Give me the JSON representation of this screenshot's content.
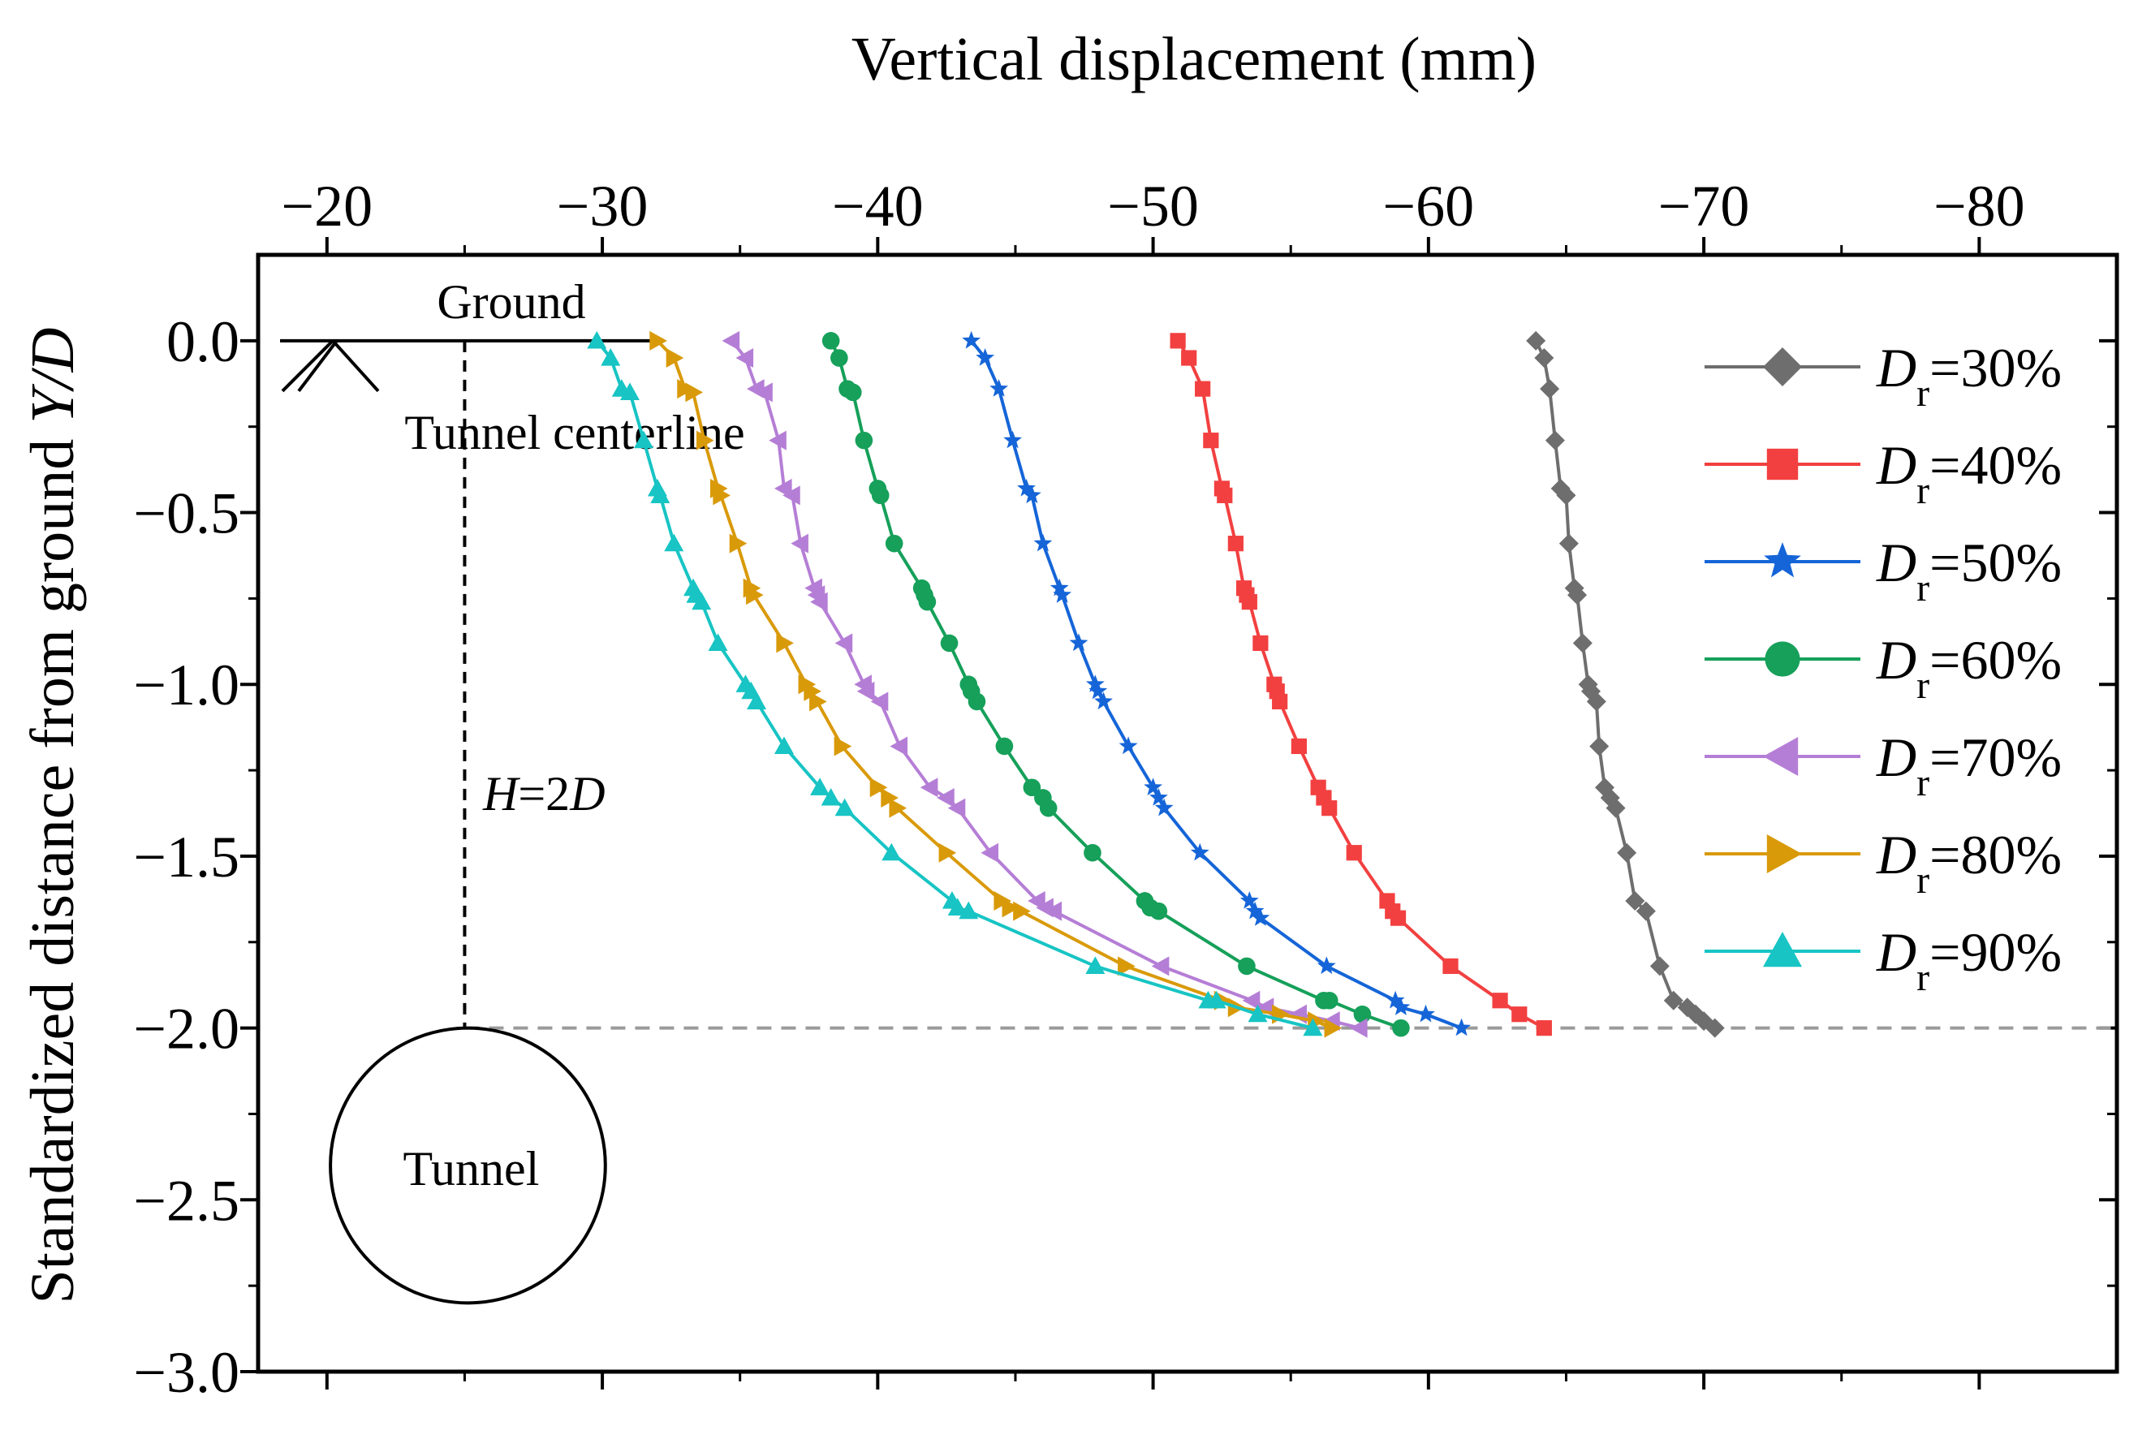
{
  "chart_data": {
    "type": "line",
    "title": "",
    "xlabel": "Vertical displacement (mm)",
    "ylabel_prefix": "Standardized distance from ground ",
    "ylabel_italic": "Y/D",
    "xlim": [
      -17.5,
      -85
    ],
    "ylim": [
      -3.0,
      0.25
    ],
    "x_ticks": [
      -20,
      -30,
      -40,
      -50,
      -60,
      -70,
      -80
    ],
    "x_tick_labels": [
      "−20",
      "−30",
      "−40",
      "−50",
      "−60",
      "−70",
      "−80"
    ],
    "y_ticks": [
      0.0,
      -0.5,
      -1.0,
      -1.5,
      -2.0,
      -2.5,
      -3.0
    ],
    "y_tick_labels": [
      "0.0",
      "−0.5",
      "−1.0",
      "−1.5",
      "−2.0",
      "−2.5",
      "−3.0"
    ],
    "grid": false,
    "legend_position": "right",
    "annotations": {
      "ground": "Ground",
      "tunnel_centerline": "Tunnel centerline",
      "depth_label_italic_1": "H",
      "depth_label_mid": "=2",
      "depth_label_italic_2": "D",
      "tunnel": "Tunnel",
      "ground_level_y": 0.0,
      "ground_line_x_end": -32,
      "centerline_x": -25,
      "tunnel_axis_y": -2.0,
      "tunnel_center_y": -2.4,
      "tunnel_radius_y": 0.4
    },
    "series": [
      {
        "name_sub": "r",
        "name_value": "=30%",
        "marker": "diamond",
        "color": "#6e6e6e",
        "x": [
          -63.9,
          -64.2,
          -64.4,
          -64.6,
          -64.8,
          -65.0,
          -65.1,
          -65.3,
          -65.4,
          -65.6,
          -65.8,
          -65.9,
          -66.1,
          -66.2,
          -66.4,
          -66.6,
          -66.8,
          -67.2,
          -67.5,
          -67.9,
          -68.4,
          -68.9,
          -69.4,
          -69.7,
          -70.0,
          -70.4
        ],
        "y": [
          0.0,
          -0.05,
          -0.14,
          -0.29,
          -0.43,
          -0.45,
          -0.59,
          -0.72,
          -0.74,
          -0.88,
          -1.0,
          -1.02,
          -1.05,
          -1.18,
          -1.3,
          -1.33,
          -1.36,
          -1.49,
          -1.63,
          -1.66,
          -1.82,
          -1.92,
          -1.94,
          -1.96,
          -1.98,
          -2.0
        ]
      },
      {
        "name_sub": "r",
        "name_value": "=40%",
        "marker": "square",
        "color": "#f24040",
        "x": [
          -50.9,
          -51.3,
          -51.8,
          -52.1,
          -52.5,
          -52.6,
          -53.0,
          -53.3,
          -53.4,
          -53.5,
          -53.9,
          -54.4,
          -54.5,
          -54.6,
          -55.3,
          -56.0,
          -56.2,
          -56.4,
          -57.3,
          -58.5,
          -58.7,
          -58.9,
          -60.8,
          -62.6,
          -63.3,
          -64.2
        ],
        "y": [
          0.0,
          -0.05,
          -0.14,
          -0.29,
          -0.43,
          -0.45,
          -0.59,
          -0.72,
          -0.74,
          -0.76,
          -0.88,
          -1.0,
          -1.02,
          -1.05,
          -1.18,
          -1.3,
          -1.33,
          -1.36,
          -1.49,
          -1.63,
          -1.66,
          -1.68,
          -1.82,
          -1.92,
          -1.96,
          -2.0
        ]
      },
      {
        "name_sub": "r",
        "name_value": "=50%",
        "marker": "star",
        "color": "#1565d8",
        "x": [
          -43.4,
          -43.9,
          -44.4,
          -44.9,
          -45.4,
          -45.6,
          -46.0,
          -46.6,
          -46.7,
          -47.3,
          -47.9,
          -48.0,
          -48.2,
          -49.1,
          -50.0,
          -50.2,
          -50.4,
          -51.7,
          -53.5,
          -53.7,
          -53.9,
          -56.3,
          -58.8,
          -59.0,
          -59.9,
          -61.2
        ],
        "y": [
          0.0,
          -0.05,
          -0.14,
          -0.29,
          -0.43,
          -0.45,
          -0.59,
          -0.72,
          -0.74,
          -0.88,
          -1.0,
          -1.02,
          -1.05,
          -1.18,
          -1.3,
          -1.33,
          -1.36,
          -1.49,
          -1.63,
          -1.66,
          -1.68,
          -1.82,
          -1.92,
          -1.94,
          -1.96,
          -2.0
        ]
      },
      {
        "name_sub": "r",
        "name_value": "=60%",
        "marker": "circle",
        "color": "#16a05a",
        "x": [
          -38.3,
          -38.6,
          -38.9,
          -39.1,
          -39.5,
          -40.0,
          -40.1,
          -40.6,
          -41.6,
          -41.7,
          -41.8,
          -42.6,
          -43.3,
          -43.4,
          -43.6,
          -44.6,
          -45.6,
          -46.0,
          -46.2,
          -47.8,
          -49.7,
          -49.9,
          -50.2,
          -53.4,
          -56.2,
          -56.4,
          -57.6,
          -59.0
        ],
        "y": [
          0.0,
          -0.05,
          -0.14,
          -0.15,
          -0.29,
          -0.43,
          -0.45,
          -0.59,
          -0.72,
          -0.74,
          -0.76,
          -0.88,
          -1.0,
          -1.02,
          -1.05,
          -1.18,
          -1.3,
          -1.33,
          -1.36,
          -1.49,
          -1.63,
          -1.65,
          -1.66,
          -1.82,
          -1.92,
          -1.92,
          -1.96,
          -2.0
        ]
      },
      {
        "name_sub": "r",
        "name_value": "=70%",
        "marker": "triangle-left",
        "color": "#b57ed6",
        "x": [
          -34.7,
          -35.2,
          -35.6,
          -35.9,
          -36.4,
          -36.6,
          -36.9,
          -37.2,
          -37.7,
          -37.8,
          -37.9,
          -38.8,
          -39.5,
          -39.6,
          -40.1,
          -40.8,
          -41.9,
          -42.5,
          -42.9,
          -44.1,
          -45.8,
          -46.1,
          -46.4,
          -50.3,
          -53.6,
          -54.1,
          -55.3,
          -56.5,
          -57.5
        ],
        "y": [
          0.0,
          -0.05,
          -0.14,
          -0.15,
          -0.29,
          -0.43,
          -0.45,
          -0.59,
          -0.72,
          -0.74,
          -0.76,
          -0.88,
          -1.0,
          -1.02,
          -1.05,
          -1.18,
          -1.3,
          -1.33,
          -1.36,
          -1.49,
          -1.63,
          -1.65,
          -1.66,
          -1.82,
          -1.92,
          -1.94,
          -1.96,
          -1.98,
          -2.0
        ]
      },
      {
        "name_sub": "r",
        "name_value": "=80%",
        "marker": "triangle-right",
        "color": "#d99a0a",
        "x": [
          -32.0,
          -32.6,
          -33.0,
          -33.3,
          -33.7,
          -34.2,
          -34.3,
          -34.9,
          -35.4,
          -35.5,
          -36.6,
          -37.4,
          -37.6,
          -37.8,
          -38.7,
          -40.0,
          -40.4,
          -40.7,
          -42.5,
          -44.5,
          -44.8,
          -45.2,
          -49.0,
          -52.5,
          -53.0,
          -54.6,
          -55.9,
          -56.5
        ],
        "y": [
          0.0,
          -0.05,
          -0.14,
          -0.15,
          -0.29,
          -0.43,
          -0.45,
          -0.59,
          -0.72,
          -0.74,
          -0.88,
          -1.0,
          -1.02,
          -1.05,
          -1.18,
          -1.3,
          -1.33,
          -1.36,
          -1.49,
          -1.63,
          -1.65,
          -1.66,
          -1.82,
          -1.92,
          -1.94,
          -1.96,
          -1.98,
          -2.0
        ]
      },
      {
        "name_sub": "r",
        "name_value": "=90%",
        "marker": "triangle-up",
        "color": "#18c4c4",
        "x": [
          -29.8,
          -30.3,
          -30.7,
          -31.0,
          -31.5,
          -32.0,
          -32.1,
          -32.6,
          -33.3,
          -33.4,
          -33.6,
          -34.2,
          -35.2,
          -35.4,
          -35.6,
          -36.6,
          -37.9,
          -38.3,
          -38.8,
          -40.5,
          -42.7,
          -42.9,
          -43.3,
          -47.9,
          -52.0,
          -52.3,
          -53.8,
          -55.8
        ],
        "y": [
          0.0,
          -0.05,
          -0.14,
          -0.15,
          -0.29,
          -0.43,
          -0.45,
          -0.59,
          -0.72,
          -0.74,
          -0.76,
          -0.88,
          -1.0,
          -1.02,
          -1.05,
          -1.18,
          -1.3,
          -1.33,
          -1.36,
          -1.49,
          -1.63,
          -1.65,
          -1.66,
          -1.82,
          -1.92,
          -1.92,
          -1.96,
          -2.0
        ]
      }
    ],
    "legend_label_prefix": "D"
  }
}
